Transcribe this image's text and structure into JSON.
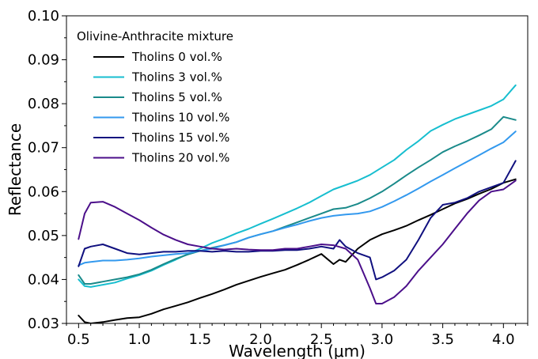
{
  "chart_data": {
    "type": "line",
    "xlabel": "Wavelength (μm)",
    "ylabel": "Reflectance",
    "xlim": [
      0.4,
      4.2
    ],
    "ylim": [
      0.03,
      0.1
    ],
    "x_ticks": [
      "0.5",
      "1.0",
      "1.5",
      "2.0",
      "2.5",
      "3.0",
      "3.5",
      "4.0"
    ],
    "y_ticks": [
      "0.03",
      "0.04",
      "0.05",
      "0.06",
      "0.07",
      "0.08",
      "0.09",
      "0.10"
    ],
    "grid": false,
    "legend": {
      "title": "Olivine-Anthracite mixture",
      "placement": "top-left"
    },
    "series": [
      {
        "name": "Tholins 0 vol.%",
        "color": "#000000",
        "points": [
          [
            0.5,
            0.0318
          ],
          [
            0.55,
            0.0303
          ],
          [
            0.6,
            0.03
          ],
          [
            0.7,
            0.0303
          ],
          [
            0.8,
            0.0308
          ],
          [
            0.9,
            0.0312
          ],
          [
            1.0,
            0.0314
          ],
          [
            1.1,
            0.0322
          ],
          [
            1.2,
            0.0332
          ],
          [
            1.3,
            0.034
          ],
          [
            1.4,
            0.0348
          ],
          [
            1.5,
            0.0358
          ],
          [
            1.6,
            0.0367
          ],
          [
            1.7,
            0.0377
          ],
          [
            1.8,
            0.0388
          ],
          [
            1.9,
            0.0397
          ],
          [
            2.0,
            0.0406
          ],
          [
            2.1,
            0.0414
          ],
          [
            2.2,
            0.0422
          ],
          [
            2.3,
            0.0433
          ],
          [
            2.4,
            0.0445
          ],
          [
            2.5,
            0.0458
          ],
          [
            2.6,
            0.0435
          ],
          [
            2.65,
            0.0445
          ],
          [
            2.7,
            0.044
          ],
          [
            2.8,
            0.047
          ],
          [
            2.9,
            0.049
          ],
          [
            3.0,
            0.0503
          ],
          [
            3.1,
            0.0512
          ],
          [
            3.2,
            0.0522
          ],
          [
            3.3,
            0.0535
          ],
          [
            3.4,
            0.0547
          ],
          [
            3.5,
            0.056
          ],
          [
            3.6,
            0.0573
          ],
          [
            3.7,
            0.0583
          ],
          [
            3.8,
            0.0595
          ],
          [
            3.9,
            0.0606
          ],
          [
            4.0,
            0.062
          ],
          [
            4.1,
            0.0628
          ]
        ]
      },
      {
        "name": "Tholins 3 vol.%",
        "color": "#17becf",
        "points": [
          [
            0.5,
            0.04
          ],
          [
            0.55,
            0.0385
          ],
          [
            0.6,
            0.0383
          ],
          [
            0.7,
            0.0388
          ],
          [
            0.8,
            0.0393
          ],
          [
            0.9,
            0.0402
          ],
          [
            1.0,
            0.041
          ],
          [
            1.1,
            0.042
          ],
          [
            1.2,
            0.0433
          ],
          [
            1.3,
            0.0445
          ],
          [
            1.4,
            0.0458
          ],
          [
            1.5,
            0.047
          ],
          [
            1.6,
            0.0483
          ],
          [
            1.7,
            0.0493
          ],
          [
            1.8,
            0.0505
          ],
          [
            1.9,
            0.0515
          ],
          [
            2.0,
            0.0527
          ],
          [
            2.1,
            0.0538
          ],
          [
            2.2,
            0.055
          ],
          [
            2.3,
            0.0562
          ],
          [
            2.4,
            0.0575
          ],
          [
            2.5,
            0.059
          ],
          [
            2.6,
            0.0605
          ],
          [
            2.7,
            0.0615
          ],
          [
            2.8,
            0.0625
          ],
          [
            2.9,
            0.0638
          ],
          [
            3.0,
            0.0655
          ],
          [
            3.1,
            0.0672
          ],
          [
            3.2,
            0.0695
          ],
          [
            3.3,
            0.0715
          ],
          [
            3.4,
            0.0738
          ],
          [
            3.5,
            0.0752
          ],
          [
            3.6,
            0.0765
          ],
          [
            3.7,
            0.0775
          ],
          [
            3.8,
            0.0785
          ],
          [
            3.9,
            0.0795
          ],
          [
            4.0,
            0.081
          ],
          [
            4.1,
            0.0842
          ]
        ]
      },
      {
        "name": "Tholins 5 vol.%",
        "color": "#1a8a8a",
        "points": [
          [
            0.5,
            0.041
          ],
          [
            0.55,
            0.039
          ],
          [
            0.6,
            0.039
          ],
          [
            0.7,
            0.0395
          ],
          [
            0.8,
            0.04
          ],
          [
            0.9,
            0.0405
          ],
          [
            1.0,
            0.0412
          ],
          [
            1.1,
            0.0422
          ],
          [
            1.2,
            0.0435
          ],
          [
            1.3,
            0.0447
          ],
          [
            1.4,
            0.0457
          ],
          [
            1.5,
            0.0465
          ],
          [
            1.6,
            0.0472
          ],
          [
            1.7,
            0.0478
          ],
          [
            1.8,
            0.0485
          ],
          [
            1.9,
            0.0495
          ],
          [
            2.0,
            0.0503
          ],
          [
            2.1,
            0.051
          ],
          [
            2.2,
            0.052
          ],
          [
            2.3,
            0.053
          ],
          [
            2.4,
            0.054
          ],
          [
            2.5,
            0.055
          ],
          [
            2.6,
            0.056
          ],
          [
            2.7,
            0.0563
          ],
          [
            2.8,
            0.0572
          ],
          [
            2.9,
            0.0585
          ],
          [
            3.0,
            0.06
          ],
          [
            3.1,
            0.0618
          ],
          [
            3.2,
            0.0637
          ],
          [
            3.3,
            0.0655
          ],
          [
            3.4,
            0.0672
          ],
          [
            3.5,
            0.069
          ],
          [
            3.6,
            0.0703
          ],
          [
            3.7,
            0.0715
          ],
          [
            3.8,
            0.0728
          ],
          [
            3.9,
            0.0742
          ],
          [
            4.0,
            0.077
          ],
          [
            4.1,
            0.0763
          ]
        ]
      },
      {
        "name": "Tholins 10 vol.%",
        "color": "#3399ee",
        "points": [
          [
            0.5,
            0.0432
          ],
          [
            0.55,
            0.0438
          ],
          [
            0.6,
            0.044
          ],
          [
            0.7,
            0.0443
          ],
          [
            0.8,
            0.0443
          ],
          [
            0.9,
            0.0445
          ],
          [
            1.0,
            0.0448
          ],
          [
            1.1,
            0.0452
          ],
          [
            1.2,
            0.0455
          ],
          [
            1.3,
            0.0458
          ],
          [
            1.4,
            0.046
          ],
          [
            1.5,
            0.0465
          ],
          [
            1.6,
            0.047
          ],
          [
            1.7,
            0.0478
          ],
          [
            1.8,
            0.0485
          ],
          [
            1.9,
            0.0495
          ],
          [
            2.0,
            0.0503
          ],
          [
            2.1,
            0.051
          ],
          [
            2.2,
            0.0518
          ],
          [
            2.3,
            0.0525
          ],
          [
            2.4,
            0.0533
          ],
          [
            2.5,
            0.054
          ],
          [
            2.6,
            0.0545
          ],
          [
            2.7,
            0.0548
          ],
          [
            2.8,
            0.055
          ],
          [
            2.9,
            0.0555
          ],
          [
            3.0,
            0.0565
          ],
          [
            3.1,
            0.0578
          ],
          [
            3.2,
            0.0592
          ],
          [
            3.3,
            0.0607
          ],
          [
            3.4,
            0.0623
          ],
          [
            3.5,
            0.0638
          ],
          [
            3.6,
            0.0653
          ],
          [
            3.7,
            0.0668
          ],
          [
            3.8,
            0.0683
          ],
          [
            3.9,
            0.0698
          ],
          [
            4.0,
            0.0712
          ],
          [
            4.1,
            0.0737
          ]
        ]
      },
      {
        "name": "Tholins 15 vol.%",
        "color": "#10107f",
        "points": [
          [
            0.5,
            0.043
          ],
          [
            0.55,
            0.047
          ],
          [
            0.6,
            0.0475
          ],
          [
            0.7,
            0.048
          ],
          [
            0.8,
            0.047
          ],
          [
            0.9,
            0.046
          ],
          [
            1.0,
            0.0457
          ],
          [
            1.1,
            0.046
          ],
          [
            1.2,
            0.0463
          ],
          [
            1.3,
            0.0463
          ],
          [
            1.4,
            0.0465
          ],
          [
            1.5,
            0.0465
          ],
          [
            1.6,
            0.0463
          ],
          [
            1.7,
            0.0465
          ],
          [
            1.8,
            0.0463
          ],
          [
            1.9,
            0.0463
          ],
          [
            2.0,
            0.0465
          ],
          [
            2.1,
            0.0465
          ],
          [
            2.2,
            0.0467
          ],
          [
            2.3,
            0.0467
          ],
          [
            2.4,
            0.047
          ],
          [
            2.5,
            0.0475
          ],
          [
            2.6,
            0.047
          ],
          [
            2.65,
            0.049
          ],
          [
            2.7,
            0.0475
          ],
          [
            2.8,
            0.046
          ],
          [
            2.9,
            0.045
          ],
          [
            2.95,
            0.04
          ],
          [
            3.0,
            0.0405
          ],
          [
            3.1,
            0.042
          ],
          [
            3.2,
            0.0445
          ],
          [
            3.3,
            0.049
          ],
          [
            3.4,
            0.054
          ],
          [
            3.5,
            0.057
          ],
          [
            3.6,
            0.0575
          ],
          [
            3.7,
            0.0585
          ],
          [
            3.8,
            0.06
          ],
          [
            3.9,
            0.061
          ],
          [
            4.0,
            0.062
          ],
          [
            4.1,
            0.067
          ]
        ]
      },
      {
        "name": "Tholins 20 vol.%",
        "color": "#4b0f8a",
        "points": [
          [
            0.5,
            0.0492
          ],
          [
            0.55,
            0.055
          ],
          [
            0.6,
            0.0575
          ],
          [
            0.7,
            0.0577
          ],
          [
            0.8,
            0.0565
          ],
          [
            0.9,
            0.055
          ],
          [
            1.0,
            0.0535
          ],
          [
            1.1,
            0.0518
          ],
          [
            1.2,
            0.0502
          ],
          [
            1.3,
            0.049
          ],
          [
            1.4,
            0.048
          ],
          [
            1.5,
            0.0475
          ],
          [
            1.6,
            0.047
          ],
          [
            1.7,
            0.0468
          ],
          [
            1.8,
            0.047
          ],
          [
            1.9,
            0.0468
          ],
          [
            2.0,
            0.0467
          ],
          [
            2.1,
            0.0467
          ],
          [
            2.2,
            0.047
          ],
          [
            2.3,
            0.047
          ],
          [
            2.4,
            0.0475
          ],
          [
            2.5,
            0.048
          ],
          [
            2.6,
            0.0478
          ],
          [
            2.7,
            0.047
          ],
          [
            2.8,
            0.0445
          ],
          [
            2.9,
            0.038
          ],
          [
            2.95,
            0.0345
          ],
          [
            3.0,
            0.0345
          ],
          [
            3.1,
            0.036
          ],
          [
            3.2,
            0.0385
          ],
          [
            3.3,
            0.042
          ],
          [
            3.4,
            0.045
          ],
          [
            3.5,
            0.048
          ],
          [
            3.6,
            0.0515
          ],
          [
            3.7,
            0.055
          ],
          [
            3.8,
            0.058
          ],
          [
            3.9,
            0.06
          ],
          [
            4.0,
            0.0605
          ],
          [
            4.1,
            0.0625
          ]
        ]
      }
    ]
  }
}
